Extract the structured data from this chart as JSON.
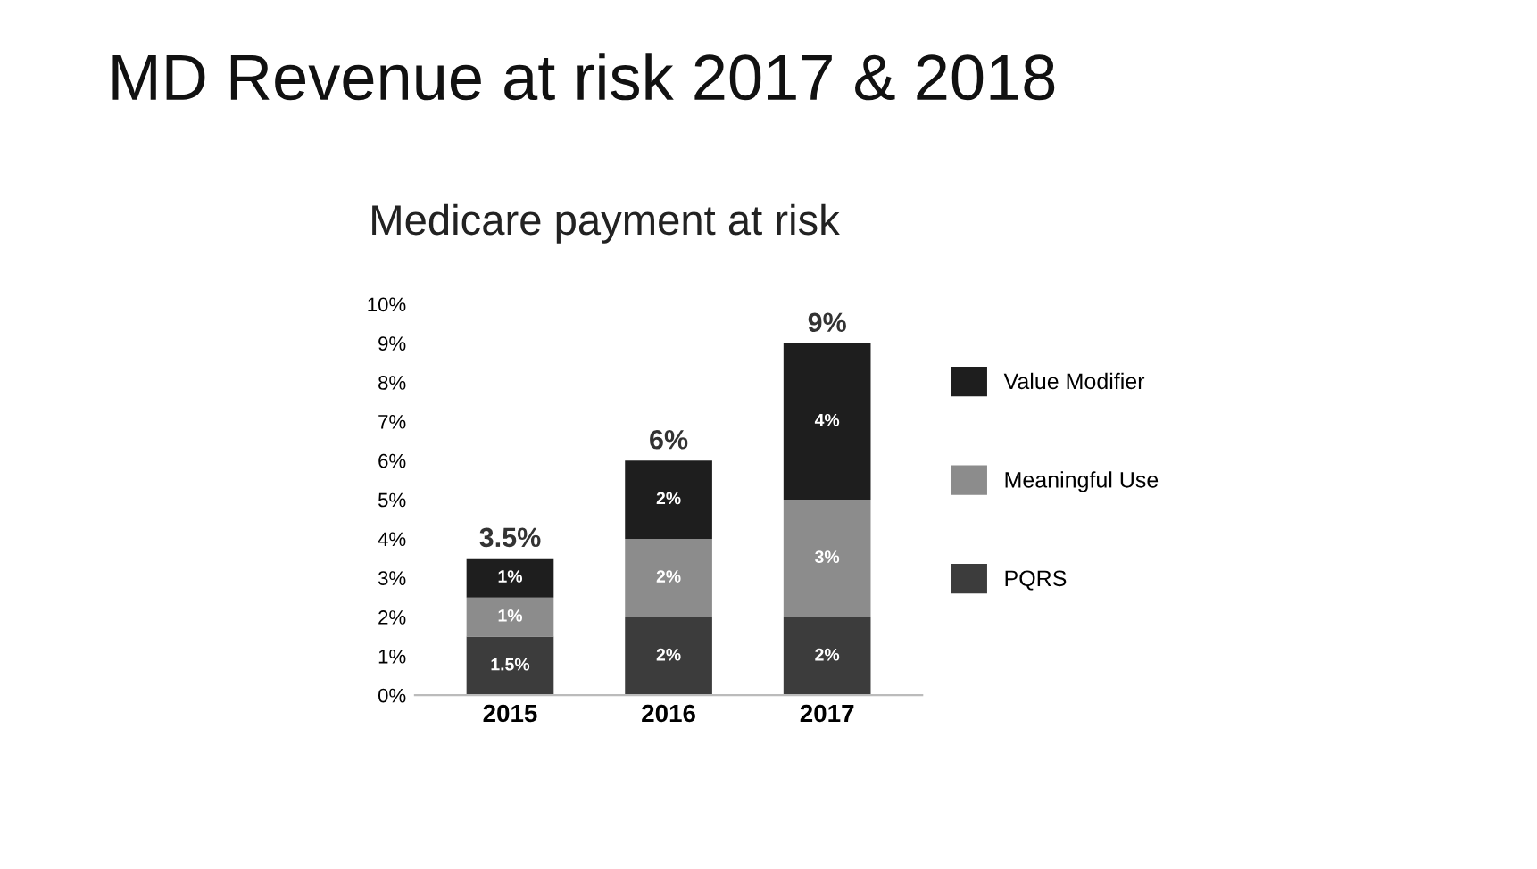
{
  "chart_data": {
    "type": "bar",
    "title": "MD Revenue at risk 2017 & 2018",
    "subtitle": "Medicare payment at risk",
    "categories": [
      "2015",
      "2016",
      "2017"
    ],
    "stacked": true,
    "series": [
      {
        "name": "PQRS",
        "color": "#3c3c3c",
        "values": [
          1.5,
          2,
          2
        ],
        "value_labels": [
          "1.5%",
          "2%",
          "2%"
        ]
      },
      {
        "name": "Meaningful Use",
        "color": "#8c8c8c",
        "values": [
          1,
          2,
          3
        ],
        "value_labels": [
          "1%",
          "2%",
          "3%"
        ]
      },
      {
        "name": "Value Modifier",
        "color": "#1e1e1e",
        "values": [
          1,
          2,
          4
        ],
        "value_labels": [
          "1%",
          "2%",
          "4%"
        ]
      }
    ],
    "totals": [
      "3.5%",
      "6%",
      "9%"
    ],
    "ylim": [
      0,
      10
    ],
    "yticks": [
      {
        "value": 0,
        "label": "0%"
      },
      {
        "value": 1,
        "label": "1%"
      },
      {
        "value": 2,
        "label": "2%"
      },
      {
        "value": 3,
        "label": "3%"
      },
      {
        "value": 4,
        "label": "4%"
      },
      {
        "value": 5,
        "label": "5%"
      },
      {
        "value": 6,
        "label": "6%"
      },
      {
        "value": 7,
        "label": "7%"
      },
      {
        "value": 8,
        "label": "8%"
      },
      {
        "value": 9,
        "label": "9%"
      },
      {
        "value": 10,
        "label": "10%"
      }
    ],
    "grid": false,
    "legend": "right"
  }
}
